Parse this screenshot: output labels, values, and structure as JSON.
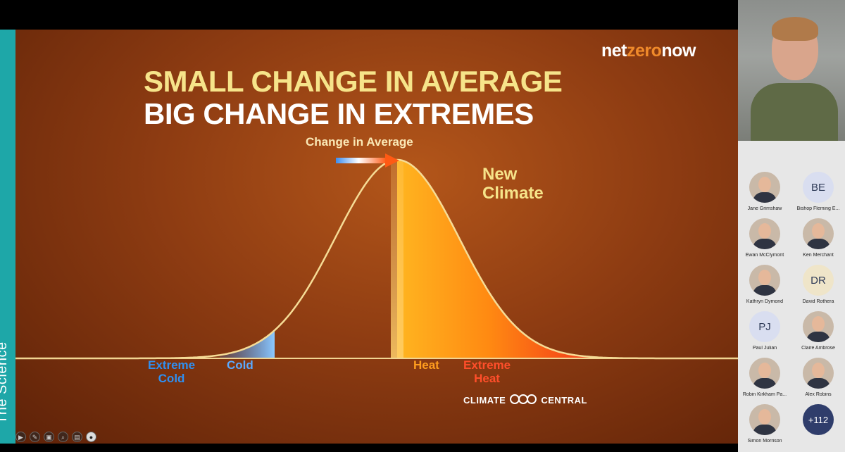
{
  "presentation": {
    "section_tab": "The Science",
    "brand": {
      "part1": "net",
      "part2": "zero",
      "part3": "now"
    },
    "title_line1": "SMALL CHANGE IN AVERAGE",
    "title_line2": "BIG CHANGE IN EXTREMES",
    "change_label": "Change in Average",
    "new_climate_line1": "New",
    "new_climate_line2": "Climate",
    "labels": {
      "extreme_cold_1": "Extreme",
      "extreme_cold_2": "Cold",
      "cold": "Cold",
      "heat": "Heat",
      "extreme_heat_1": "Extreme",
      "extreme_heat_2": "Heat"
    },
    "credit_left": "CLIMATE",
    "credit_right": "CENTRAL",
    "colors": {
      "title_yellow": "#f6e48a",
      "cold_blue": "#2f8ff0",
      "heat_orange": "#ff9d1e",
      "extreme_heat_red": "#ff4e2a",
      "tab_teal": "#1ea7a8"
    }
  },
  "toolbar": [
    {
      "icon": "play-icon",
      "glyph": "▶"
    },
    {
      "icon": "pen-icon",
      "glyph": "✎"
    },
    {
      "icon": "slides-icon",
      "glyph": "▣"
    },
    {
      "icon": "zoom-icon",
      "glyph": "⌕"
    },
    {
      "icon": "subtitles-icon",
      "glyph": "▤"
    },
    {
      "icon": "camera-icon",
      "glyph": "●"
    }
  ],
  "participants": [
    {
      "name": "Jane Grimshaw",
      "initials": ""
    },
    {
      "name": "Bishop Fleming E...",
      "initials": "BE"
    },
    {
      "name": "Ewan McClymont",
      "initials": ""
    },
    {
      "name": "Ken Merchant",
      "initials": ""
    },
    {
      "name": "Kathryn Dymond",
      "initials": ""
    },
    {
      "name": "David Rothera",
      "initials": "DR"
    },
    {
      "name": "Paul Julian",
      "initials": "PJ"
    },
    {
      "name": "Claire Ambrose",
      "initials": ""
    },
    {
      "name": "Robin Kirkham Pa...",
      "initials": ""
    },
    {
      "name": "Alex Robins",
      "initials": ""
    },
    {
      "name": "Simon Morrison",
      "initials": ""
    },
    {
      "name": "",
      "initials": "+112"
    }
  ]
}
